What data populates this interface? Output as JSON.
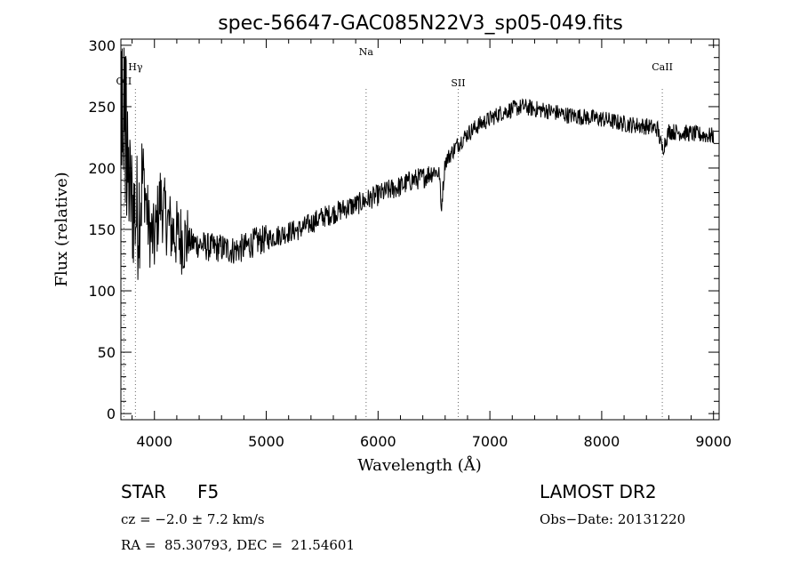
{
  "chart_data": {
    "type": "line",
    "title": "spec-56647-GAC085N22V3_sp05-049.fits",
    "xlabel": "Wavelength (Å)",
    "ylabel": "Flux (relative)",
    "xlim": [
      3700,
      9050
    ],
    "ylim": [
      -5,
      305
    ],
    "xticks": [
      4000,
      5000,
      6000,
      7000,
      8000,
      9000
    ],
    "yticks": [
      0,
      50,
      100,
      150,
      200,
      250,
      300
    ],
    "grid": false,
    "line_color": "#000000",
    "lines": [
      {
        "label": "OII",
        "x": 3727
      },
      {
        "label": "Hγ",
        "x": 3830
      },
      {
        "label": "Na",
        "x": 5893
      },
      {
        "label": "SII",
        "x": 6717
      },
      {
        "label": "CaII",
        "x": 8542
      }
    ],
    "series": [
      {
        "x": [
          3700,
          3750,
          3800,
          3850,
          3900,
          3950,
          4000,
          4050,
          4100,
          4150,
          4200,
          4300,
          4400,
          4500,
          4600,
          4700,
          4800,
          4900,
          5000,
          5100,
          5200,
          5300,
          5400,
          5500,
          5600,
          5700,
          5800,
          5900,
          6000,
          6100,
          6200,
          6300,
          6400,
          6500,
          6550,
          6563,
          6600,
          6700,
          6800,
          6900,
          7000,
          7100,
          7200,
          7300,
          7400,
          7500,
          7600,
          7700,
          7800,
          7900,
          8000,
          8100,
          8200,
          8300,
          8400,
          8500,
          8542,
          8600,
          8700,
          8800,
          8900,
          9000
        ],
        "y": [
          180,
          200,
          170,
          160,
          195,
          150,
          140,
          175,
          160,
          150,
          145,
          140,
          138,
          135,
          135,
          133,
          135,
          140,
          142,
          145,
          148,
          150,
          155,
          160,
          163,
          167,
          170,
          174,
          178,
          182,
          185,
          190,
          192,
          198,
          195,
          165,
          205,
          218,
          228,
          235,
          240,
          245,
          248,
          250,
          248,
          247,
          245,
          243,
          242,
          241,
          240,
          238,
          236,
          235,
          234,
          232,
          215,
          230,
          229,
          228,
          227,
          226
        ]
      }
    ],
    "footer": {
      "object_class": "STAR",
      "subclass": "F5",
      "survey": "LAMOST DR2",
      "cz": "cz = −2.0 ± 7.2 km/s",
      "obs_date": "Obs−Date: 20131220",
      "coords": "RA =  85.30793, DEC =  21.54601"
    }
  }
}
